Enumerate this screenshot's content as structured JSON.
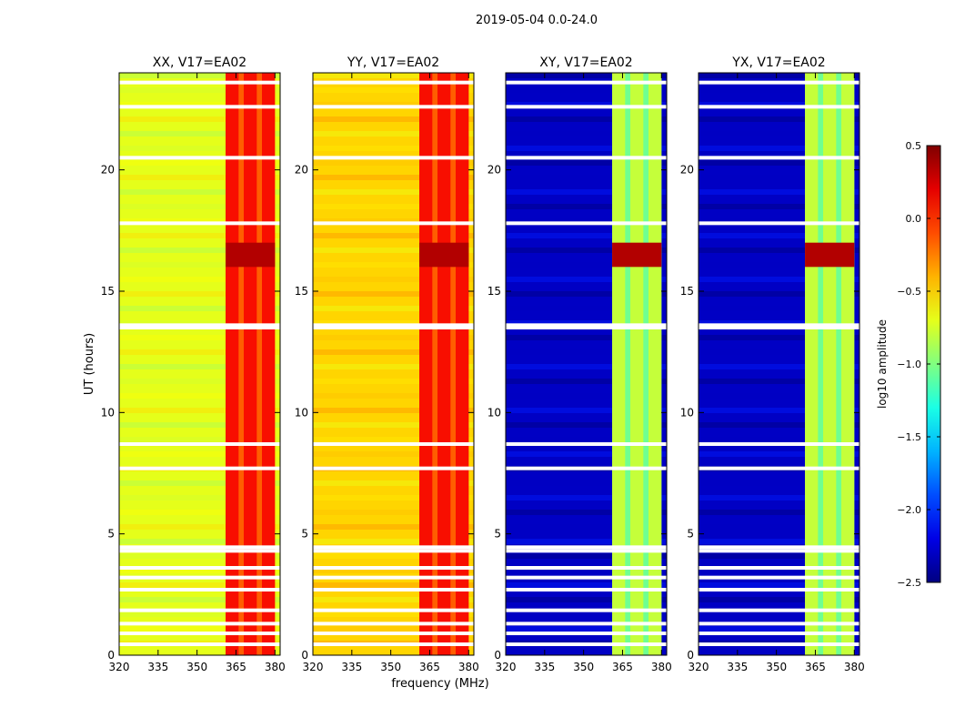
{
  "figure": {
    "suptitle": "2019-05-04 0.0-24.0",
    "ylabel": "UT (hours)",
    "xlabel": "frequency (MHz)"
  },
  "chart_data": {
    "type": "heatmap",
    "title": "2019-05-04 0.0-24.0",
    "xlabel": "frequency (MHz)",
    "ylabel": "UT (hours)",
    "xlim": [
      320,
      382
    ],
    "ylim": [
      0,
      24
    ],
    "x_ticks": [
      320,
      335,
      350,
      365,
      380
    ],
    "x_tick_labels": [
      "320",
      "335",
      "350",
      "365",
      "380"
    ],
    "y_ticks": [
      0,
      5,
      10,
      15,
      20
    ],
    "y_tick_labels": [
      "0",
      "5",
      "10",
      "15",
      "20"
    ],
    "panels": [
      {
        "id": "xx",
        "title": "XX, V17=EA02",
        "baseline_log_amp": -0.7
      },
      {
        "id": "yy",
        "title": "YY, V17=EA02",
        "baseline_log_amp": -0.5
      },
      {
        "id": "xy",
        "title": "XY, V17=EA02",
        "baseline_log_amp": -2.3
      },
      {
        "id": "yx",
        "title": "YX, V17=EA02",
        "baseline_log_amp": -2.3
      }
    ],
    "rfi_band_mhz": [
      361,
      380
    ],
    "rfi_columns_mhz": [
      361,
      366,
      368,
      373,
      375,
      380
    ],
    "gap_rows_hours": [
      0.45,
      0.9,
      1.3,
      1.85,
      2.7,
      3.2,
      3.6,
      4.3,
      4.45,
      7.7,
      8.7,
      13.5,
      13.6,
      17.8,
      20.5,
      22.6,
      23.6
    ],
    "colorbar": {
      "label": "log10 amplitude",
      "vmin": -2.5,
      "vmax": 0.5,
      "ticks": [
        -2.5,
        -2.0,
        -1.5,
        -1.0,
        -0.5,
        0.0,
        0.5
      ],
      "tick_labels": [
        "−2.5",
        "−2.0",
        "−1.5",
        "−1.0",
        "−0.5",
        "0.0",
        "0.5"
      ],
      "colormap": "jet"
    }
  }
}
